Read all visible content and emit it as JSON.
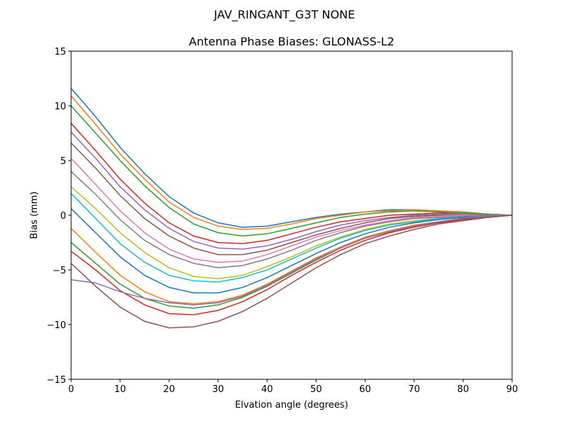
{
  "chart_data": {
    "type": "line",
    "suptitle": "JAV_RINGANT_G3T NONE",
    "title": "Antenna Phase Biases: GLONASS-L2",
    "xlabel": "Elvation angle (degrees)",
    "ylabel": "Bias (mm)",
    "xlim": [
      0,
      90
    ],
    "ylim": [
      -15,
      15
    ],
    "xticks": [
      0,
      10,
      20,
      30,
      40,
      50,
      60,
      70,
      80,
      90
    ],
    "yticks": [
      -15,
      -10,
      -5,
      0,
      5,
      10,
      15
    ],
    "grid": false,
    "colors": [
      "#1f77b4",
      "#ff7f0e",
      "#2ca02c",
      "#d62728",
      "#9467bd",
      "#8c564b",
      "#e377c2",
      "#7f7f7f",
      "#bcbd22",
      "#17becf"
    ],
    "x": [
      0,
      5,
      10,
      15,
      20,
      25,
      30,
      35,
      40,
      45,
      50,
      55,
      60,
      65,
      70,
      75,
      80,
      85,
      90
    ],
    "series": [
      {
        "values": [
          11.6,
          9.0,
          6.2,
          3.8,
          1.7,
          0.2,
          -0.7,
          -1.1,
          -1.0,
          -0.6,
          -0.2,
          0.1,
          0.3,
          0.5,
          0.5,
          0.4,
          0.3,
          0.1,
          0
        ]
      },
      {
        "values": [
          10.9,
          8.3,
          5.6,
          3.3,
          1.2,
          -0.2,
          -1.0,
          -1.3,
          -1.2,
          -0.8,
          -0.3,
          0.0,
          0.3,
          0.4,
          0.5,
          0.4,
          0.3,
          0.1,
          0
        ]
      },
      {
        "values": [
          10.0,
          7.5,
          5.0,
          2.7,
          0.7,
          -0.8,
          -1.6,
          -1.9,
          -1.7,
          -1.2,
          -0.7,
          -0.2,
          0.1,
          0.3,
          0.4,
          0.3,
          0.2,
          0.1,
          0
        ]
      },
      {
        "values": [
          8.4,
          5.9,
          3.3,
          1.1,
          -0.7,
          -1.9,
          -2.5,
          -2.6,
          -2.3,
          -1.7,
          -1.1,
          -0.6,
          -0.3,
          0.0,
          0.1,
          0.2,
          0.1,
          0.0,
          0
        ]
      },
      {
        "values": [
          7.6,
          5.2,
          2.6,
          0.5,
          -1.2,
          -2.4,
          -3.0,
          -3.1,
          -2.8,
          -2.2,
          -1.5,
          -0.9,
          -0.5,
          -0.2,
          0.0,
          0.1,
          0.1,
          0.0,
          0
        ]
      },
      {
        "values": [
          6.6,
          4.3,
          1.8,
          -0.3,
          -1.9,
          -3.0,
          -3.6,
          -3.6,
          -3.2,
          -2.5,
          -1.8,
          -1.2,
          -0.7,
          -0.3,
          -0.1,
          0.0,
          0.0,
          0.0,
          0
        ]
      },
      {
        "values": [
          5.2,
          2.8,
          0.4,
          -1.6,
          -3.1,
          -4.0,
          -4.3,
          -4.2,
          -3.6,
          -2.8,
          -2.0,
          -1.4,
          -0.9,
          -0.5,
          -0.2,
          -0.1,
          0.0,
          0.0,
          0
        ]
      },
      {
        "values": [
          4.0,
          1.9,
          -0.4,
          -2.3,
          -3.6,
          -4.4,
          -4.8,
          -4.6,
          -4.0,
          -3.2,
          -2.3,
          -1.6,
          -1.0,
          -0.6,
          -0.3,
          -0.2,
          -0.1,
          0.0,
          0
        ]
      },
      {
        "values": [
          2.6,
          0.6,
          -1.6,
          -3.4,
          -4.8,
          -5.6,
          -5.8,
          -5.5,
          -4.7,
          -3.8,
          -2.8,
          -2.0,
          -1.3,
          -0.8,
          -0.5,
          -0.3,
          -0.2,
          -0.1,
          0
        ]
      },
      {
        "values": [
          2.0,
          -0.3,
          -2.6,
          -4.3,
          -5.5,
          -6.0,
          -6.1,
          -5.7,
          -5.0,
          -4.0,
          -3.0,
          -2.1,
          -1.4,
          -0.9,
          -0.6,
          -0.3,
          -0.2,
          -0.1,
          0
        ]
      },
      {
        "values": [
          0.6,
          -1.6,
          -3.8,
          -5.5,
          -6.6,
          -7.1,
          -7.1,
          -6.6,
          -5.7,
          -4.6,
          -3.5,
          -2.5,
          -1.7,
          -1.1,
          -0.7,
          -0.4,
          -0.2,
          -0.1,
          0
        ]
      },
      {
        "values": [
          -1.2,
          -3.4,
          -5.5,
          -7.0,
          -7.9,
          -8.1,
          -7.9,
          -7.3,
          -6.3,
          -5.1,
          -3.9,
          -2.9,
          -2.0,
          -1.4,
          -0.9,
          -0.6,
          -0.3,
          -0.1,
          0
        ]
      },
      {
        "values": [
          -2.5,
          -4.4,
          -6.3,
          -7.6,
          -8.3,
          -8.5,
          -8.2,
          -7.5,
          -6.5,
          -5.3,
          -4.1,
          -3.0,
          -2.1,
          -1.5,
          -1.0,
          -0.6,
          -0.3,
          -0.1,
          0
        ]
      },
      {
        "values": [
          -3.3,
          -5.0,
          -6.9,
          -8.2,
          -9.0,
          -9.1,
          -8.7,
          -7.9,
          -6.8,
          -5.5,
          -4.3,
          -3.2,
          -2.3,
          -1.6,
          -1.1,
          -0.7,
          -0.4,
          -0.2,
          0
        ]
      },
      {
        "values": [
          -5.9,
          -6.2,
          -7.0,
          -7.6,
          -8.0,
          -8.2,
          -8.0,
          -7.4,
          -6.4,
          -5.2,
          -4.0,
          -3.0,
          -2.1,
          -1.5,
          -1.0,
          -0.6,
          -0.3,
          -0.1,
          0
        ]
      },
      {
        "values": [
          -4.4,
          -6.5,
          -8.4,
          -9.7,
          -10.3,
          -10.2,
          -9.7,
          -8.8,
          -7.6,
          -6.2,
          -4.8,
          -3.6,
          -2.6,
          -1.9,
          -1.3,
          -0.8,
          -0.5,
          -0.2,
          0
        ]
      }
    ]
  }
}
